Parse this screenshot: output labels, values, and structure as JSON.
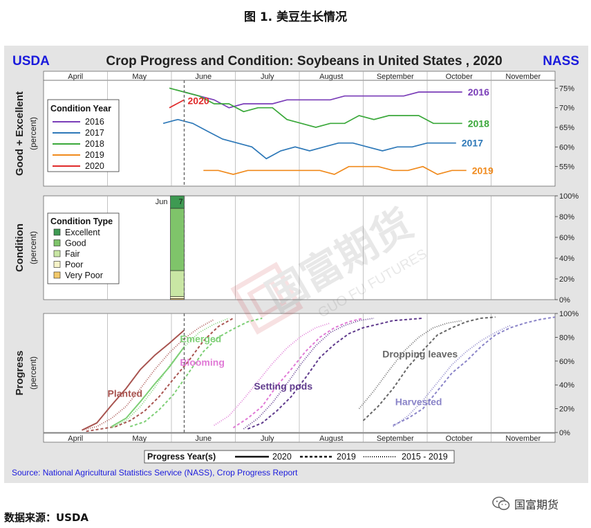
{
  "figure_title": "图 1. 美豆生长情况",
  "footer_source": "数据来源：USDA",
  "brand_name": "国富期货",
  "header": {
    "left": "USDA",
    "title": "Crop Progress and Condition: Soybeans in United States , 2020",
    "right": "NASS"
  },
  "months": [
    "April",
    "May",
    "June",
    "July",
    "August",
    "September",
    "October",
    "November"
  ],
  "watermark": {
    "cn": "国富期货",
    "en": "GUO FU FUTURES"
  },
  "source_note": "Source: National Agricultural Statistics Service (NASS), Crop Progress Report",
  "colors": {
    "2016": "#7a3db8",
    "2017": "#2d78b8",
    "2018": "#3aa83a",
    "2019": "#f08a1c",
    "2020": "#e02a2a",
    "accent_blue": "#1a1adc"
  },
  "chart_data": [
    {
      "type": "line",
      "ylabel": "Good + Excellent",
      "yunit": "(percent)",
      "ylim": [
        50,
        77
      ],
      "yticks": [
        "55%",
        "60%",
        "65%",
        "70%",
        "75%"
      ],
      "xlabel": "",
      "legend": {
        "title": "Condition Year",
        "position": "left",
        "entries": [
          "2016",
          "2017",
          "2018",
          "2019",
          "2020"
        ]
      },
      "series": [
        {
          "name": "2016",
          "x": [
            "Jun 7",
            "Jun 14",
            "Jun 21",
            "Jun 28",
            "Jul 5",
            "Jul 12",
            "Jul 19",
            "Jul 26",
            "Aug 2",
            "Aug 9",
            "Aug 16",
            "Aug 23",
            "Aug 30",
            "Sep 6",
            "Sep 13",
            "Sep 20",
            "Sep 27",
            "Oct 4",
            "Oct 11",
            "Oct 18"
          ],
          "values": [
            74,
            73,
            72,
            70,
            71,
            71,
            71,
            72,
            72,
            72,
            72,
            73,
            73,
            73,
            73,
            73,
            74,
            74,
            74,
            74
          ]
        },
        {
          "name": "2017",
          "x": [
            "May 28",
            "Jun 4",
            "Jun 11",
            "Jun 18",
            "Jun 25",
            "Jul 2",
            "Jul 9",
            "Jul 16",
            "Jul 23",
            "Jul 30",
            "Aug 6",
            "Aug 13",
            "Aug 20",
            "Aug 27",
            "Sep 3",
            "Sep 10",
            "Sep 17",
            "Sep 24",
            "Oct 1",
            "Oct 8",
            "Oct 15"
          ],
          "values": [
            66,
            67,
            66,
            64,
            62,
            61,
            60,
            57,
            59,
            60,
            59,
            60,
            61,
            61,
            60,
            59,
            60,
            60,
            61,
            61,
            61
          ]
        },
        {
          "name": "2018",
          "x": [
            "May 31",
            "Jun 7",
            "Jun 14",
            "Jun 21",
            "Jun 28",
            "Jul 5",
            "Jul 12",
            "Jul 19",
            "Jul 26",
            "Aug 2",
            "Aug 9",
            "Aug 16",
            "Aug 23",
            "Aug 30",
            "Sep 6",
            "Sep 13",
            "Sep 20",
            "Sep 27",
            "Oct 4",
            "Oct 11",
            "Oct 18"
          ],
          "values": [
            75,
            74,
            73,
            71,
            71,
            69,
            70,
            70,
            67,
            66,
            65,
            66,
            66,
            68,
            67,
            68,
            68,
            68,
            66,
            66,
            66
          ]
        },
        {
          "name": "2019",
          "x": [
            "Jun 16",
            "Jun 23",
            "Jun 30",
            "Jul 7",
            "Jul 14",
            "Jul 21",
            "Jul 28",
            "Aug 4",
            "Aug 11",
            "Aug 18",
            "Aug 25",
            "Sep 1",
            "Sep 8",
            "Sep 15",
            "Sep 22",
            "Sep 29",
            "Oct 6",
            "Oct 13",
            "Oct 20"
          ],
          "values": [
            54,
            54,
            53,
            54,
            54,
            54,
            54,
            54,
            54,
            53,
            55,
            55,
            55,
            54,
            54,
            55,
            53,
            54,
            54
          ]
        },
        {
          "name": "2020",
          "x": [
            "May 31",
            "Jun 7"
          ],
          "values": [
            70,
            72
          ]
        }
      ],
      "end_labels": [
        "2016",
        "2018",
        "2017",
        "2019"
      ],
      "annotation": "2020"
    },
    {
      "type": "bar",
      "ylabel": "Condition",
      "yunit": "(percent)",
      "ylim": [
        0,
        100
      ],
      "yticks": [
        "0%",
        "20%",
        "40%",
        "60%",
        "80%",
        "100%"
      ],
      "legend": {
        "title": "Condition Type",
        "position": "left",
        "entries": [
          "Excellent",
          "Good",
          "Fair",
          "Poor",
          "Very Poor"
        ]
      },
      "categories": [
        "Jun 7"
      ],
      "bar_label": "Jun",
      "bar_value_label": "7",
      "series": [
        {
          "name": "Very Poor",
          "values": [
            1
          ],
          "color": "#f2c96a"
        },
        {
          "name": "Poor",
          "values": [
            2
          ],
          "color": "#f6f3c8"
        },
        {
          "name": "Fair",
          "values": [
            25
          ],
          "color": "#c9e6a4"
        },
        {
          "name": "Good",
          "values": [
            60
          ],
          "color": "#7fc46a"
        },
        {
          "name": "Excellent",
          "values": [
            12
          ],
          "color": "#3e9a52"
        }
      ]
    },
    {
      "type": "line",
      "ylabel": "Progress",
      "yunit": "(percent)",
      "ylim": [
        0,
        100
      ],
      "yticks": [
        "0%",
        "20%",
        "40%",
        "60%",
        "80%",
        "100%"
      ],
      "legend": {
        "title": "Progress Year(s)",
        "position": "bottom",
        "entries": [
          "2020",
          "2019",
          "2015 - 2019"
        ]
      },
      "stages": [
        {
          "name": "Planted",
          "color": "#a85450",
          "series": [
            {
              "year": "2020",
              "x": [
                "Apr 19",
                "Apr 26",
                "May 3",
                "May 10",
                "May 17",
                "May 24",
                "May 31",
                "Jun 7"
              ],
              "values": [
                2,
                8,
                23,
                37,
                53,
                65,
                75,
                86
              ]
            },
            {
              "year": "2019",
              "x": [
                "Apr 21",
                "Apr 28",
                "May 5",
                "May 12",
                "May 19",
                "May 26",
                "Jun 2",
                "Jun 9",
                "Jun 16",
                "Jun 23",
                "Jun 30"
              ],
              "values": [
                1,
                3,
                5,
                10,
                18,
                30,
                45,
                60,
                77,
                89,
                96
              ]
            },
            {
              "year": "2015 - 2019",
              "x": [
                "Apr 19",
                "Apr 26",
                "May 3",
                "May 10",
                "May 17",
                "May 24",
                "May 31",
                "Jun 7",
                "Jun 14",
                "Jun 21"
              ],
              "values": [
                2,
                5,
                12,
                22,
                37,
                53,
                67,
                79,
                88,
                95
              ]
            }
          ]
        },
        {
          "name": "Emerged",
          "color": "#7ecf76",
          "series": [
            {
              "year": "2020",
              "x": [
                "May 3",
                "May 10",
                "May 17",
                "May 24",
                "May 31",
                "Jun 7"
              ],
              "values": [
                5,
                12,
                26,
                41,
                55,
                72
              ]
            },
            {
              "year": "2019",
              "x": [
                "May 12",
                "May 19",
                "May 26",
                "Jun 2",
                "Jun 9",
                "Jun 16",
                "Jun 23",
                "Jun 30",
                "Jul 7",
                "Jul 14"
              ],
              "values": [
                5,
                9,
                19,
                32,
                50,
                68,
                80,
                87,
                93,
                96
              ]
            },
            {
              "year": "2015 - 2019",
              "x": [
                "May 3",
                "May 10",
                "May 17",
                "May 24",
                "May 31",
                "Jun 7",
                "Jun 14",
                "Jun 21",
                "Jun 28"
              ],
              "values": [
                4,
                10,
                22,
                38,
                56,
                72,
                84,
                91,
                96
              ]
            }
          ]
        },
        {
          "name": "Blooming",
          "color": "#e07ad6",
          "series": [
            {
              "year": "2019",
              "x": [
                "Jun 30",
                "Jul 7",
                "Jul 14",
                "Jul 21",
                "Jul 28",
                "Aug 4",
                "Aug 11",
                "Aug 18",
                "Aug 25",
                "Sep 1"
              ],
              "values": [
                4,
                12,
                22,
                39,
                53,
                68,
                80,
                88,
                93,
                96
              ]
            },
            {
              "year": "2015 - 2019",
              "x": [
                "Jun 21",
                "Jun 28",
                "Jul 5",
                "Jul 12",
                "Jul 19",
                "Jul 26",
                "Aug 2",
                "Aug 9",
                "Aug 16"
              ],
              "values": [
                6,
                14,
                28,
                43,
                58,
                71,
                81,
                88,
                92
              ]
            }
          ]
        },
        {
          "name": "Setting pods",
          "color": "#5f3a8c",
          "series": [
            {
              "year": "2019",
              "x": [
                "Jul 7",
                "Jul 14",
                "Jul 21",
                "Jul 28",
                "Aug 4",
                "Aug 11",
                "Aug 18",
                "Aug 25",
                "Sep 1",
                "Sep 8",
                "Sep 15",
                "Sep 22",
                "Sep 29"
              ],
              "values": [
                3,
                8,
                18,
                30,
                46,
                63,
                74,
                83,
                88,
                91,
                94,
                95,
                96
              ]
            },
            {
              "year": "2015 - 2019",
              "x": [
                "Jul 5",
                "Jul 12",
                "Jul 19",
                "Jul 26",
                "Aug 2",
                "Aug 9",
                "Aug 16",
                "Aug 23",
                "Aug 30",
                "Sep 6"
              ],
              "values": [
                3,
                12,
                25,
                41,
                58,
                73,
                84,
                90,
                94,
                96
              ]
            }
          ]
        },
        {
          "name": "Dropping leaves",
          "color": "#666666",
          "series": [
            {
              "year": "2019",
              "x": [
                "Sep 1",
                "Sep 8",
                "Sep 15",
                "Sep 22",
                "Sep 29",
                "Oct 6",
                "Oct 13",
                "Oct 20",
                "Oct 27",
                "Nov 3"
              ],
              "values": [
                10,
                22,
                37,
                55,
                69,
                82,
                88,
                93,
                96,
                97
              ]
            },
            {
              "year": "2015 - 2019",
              "x": [
                "Aug 30",
                "Sep 6",
                "Sep 13",
                "Sep 20",
                "Sep 27",
                "Oct 4",
                "Oct 11",
                "Oct 18"
              ],
              "values": [
                20,
                35,
                52,
                68,
                80,
                88,
                92,
                94
              ]
            }
          ]
        },
        {
          "name": "Harvested",
          "color": "#8a84c8",
          "series": [
            {
              "year": "2019",
              "x": [
                "Sep 15",
                "Sep 22",
                "Sep 29",
                "Oct 6",
                "Oct 13",
                "Oct 20",
                "Oct 27",
                "Nov 3",
                "Nov 10",
                "Nov 17",
                "Nov 24",
                "Dec 1"
              ],
              "values": [
                6,
                12,
                20,
                35,
                50,
                60,
                72,
                82,
                88,
                92,
                95,
                97
              ]
            },
            {
              "year": "2015 - 2019",
              "x": [
                "Sep 15",
                "Sep 22",
                "Sep 29",
                "Oct 6",
                "Oct 13",
                "Oct 20",
                "Oct 27",
                "Nov 3",
                "Nov 10"
              ],
              "values": [
                5,
                14,
                27,
                42,
                57,
                68,
                77,
                84,
                90
              ]
            }
          ]
        }
      ]
    }
  ]
}
